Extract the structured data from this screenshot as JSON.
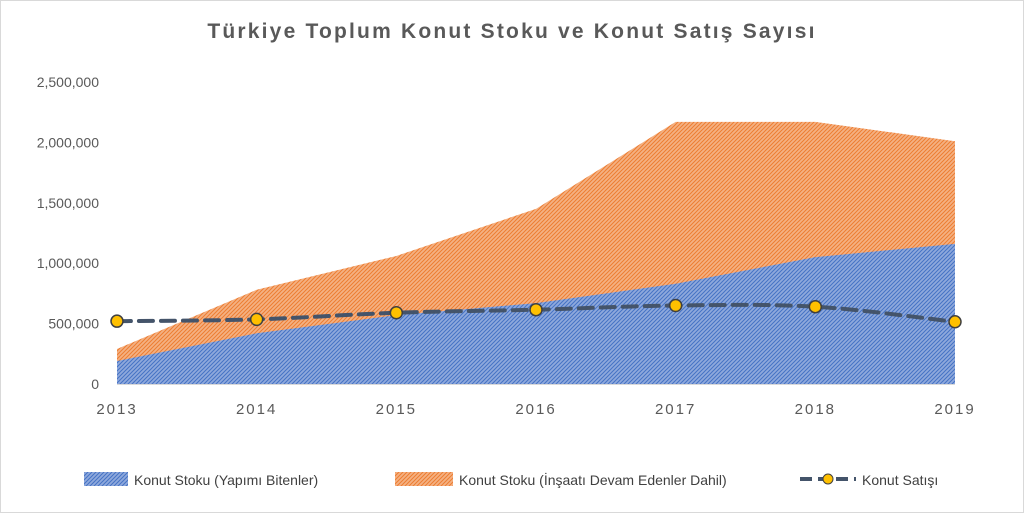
{
  "chart_data": {
    "type": "area",
    "title": "Türkiye Toplum  Konut Stoku ve Konut Satış Sayısı",
    "x": [
      "2013",
      "2014",
      "2015",
      "2016",
      "2017",
      "2018",
      "2019"
    ],
    "ylim": [
      0,
      2500000
    ],
    "yticks": [
      "0",
      "500,000",
      "1,000,000",
      "1,500,000",
      "2,000,000",
      "2,500,000"
    ],
    "ytick_values": [
      0,
      500000,
      1000000,
      1500000,
      2000000,
      2500000
    ],
    "grid": false,
    "legend_position": "bottom",
    "series": [
      {
        "name": "Konut Stoku (Yapımı Bitenler)",
        "kind": "area",
        "color": "#4472c4",
        "values": [
          190000,
          420000,
          570000,
          670000,
          830000,
          1050000,
          1160000
        ]
      },
      {
        "name": "Konut Stoku (İnşaatı Devam Edenler Dahil)",
        "kind": "area",
        "color": "#ed7d31",
        "values": [
          290000,
          780000,
          1060000,
          1450000,
          2170000,
          2170000,
          2010000
        ]
      },
      {
        "name": "Konut Satışı",
        "kind": "line",
        "color": "#44546a",
        "marker_color": "#ffc000",
        "values": [
          520000,
          535000,
          590000,
          615000,
          650000,
          640000,
          515000
        ]
      }
    ]
  }
}
